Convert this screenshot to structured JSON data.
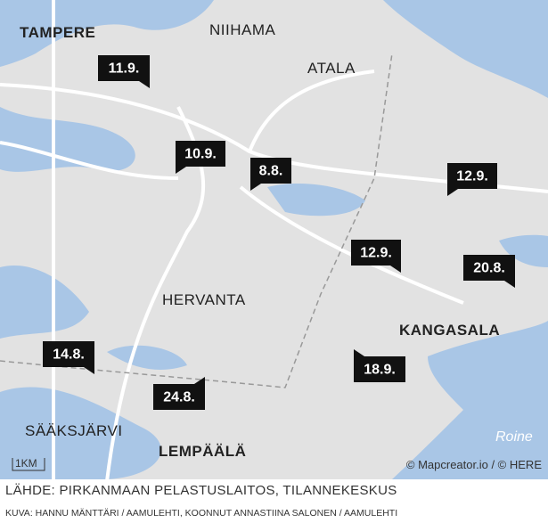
{
  "map": {
    "places": [
      {
        "label": "TAMPERE",
        "bold": true
      },
      {
        "label": "NIIHAMA",
        "bold": false
      },
      {
        "label": "ATALA",
        "bold": false
      },
      {
        "label": "HERVANTA",
        "bold": false
      },
      {
        "label": "KANGASALA",
        "bold": true
      },
      {
        "label": "SÄÄKSJÄRVI",
        "bold": false
      },
      {
        "label": "LEMPÄÄLÄ",
        "bold": true
      }
    ],
    "water_label": "Roine",
    "markers": [
      "11.9.",
      "10.9.",
      "8.8.",
      "12.9.",
      "12.9.",
      "20.8.",
      "14.8.",
      "24.8.",
      "18.9."
    ],
    "scale": "1KM",
    "attribution": "© Mapcreator.io / © HERE"
  },
  "caption": {
    "source": "LÄHDE: PIRKANMAAN PELASTUSLAITOS, TILANNEKESKUS",
    "credit": "KUVA: HANNU MÄNTTÄRI / AAMULEHTI, KOONNUT ANNASTIINA SALONEN / AAMULEHTI"
  }
}
